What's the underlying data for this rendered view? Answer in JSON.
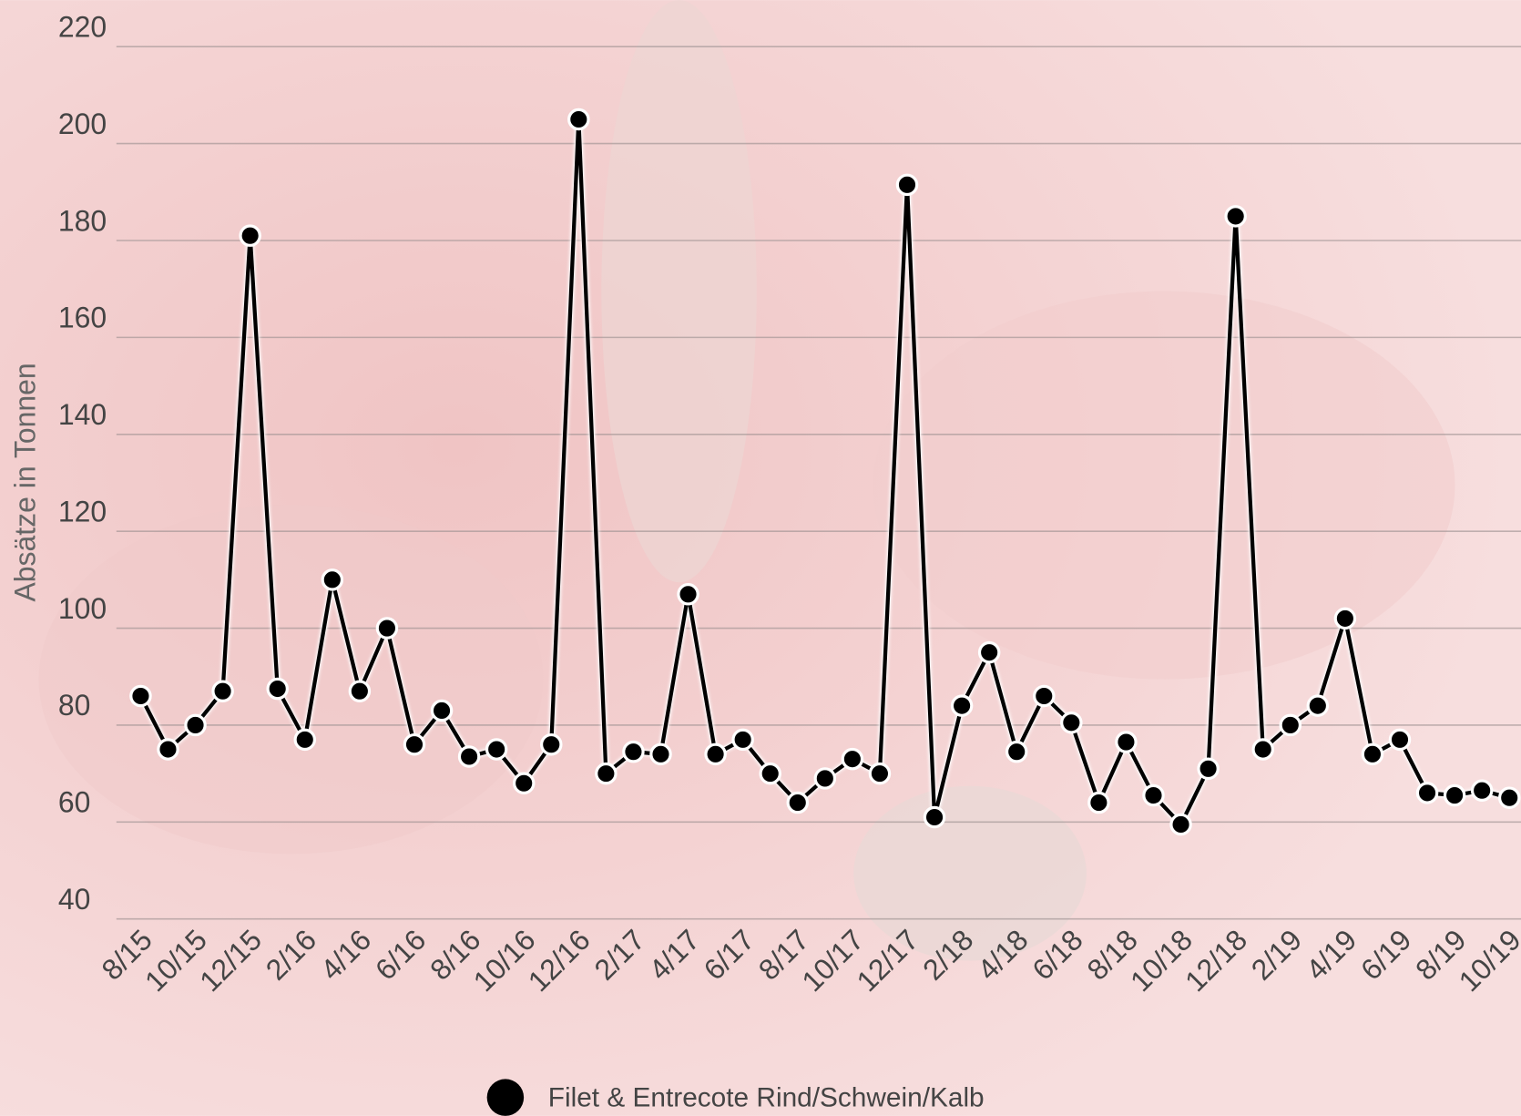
{
  "chart_data": {
    "type": "line",
    "y_label": "Absätze in Tonnen",
    "categories": [
      "8/15",
      null,
      "10/15",
      null,
      "12/15",
      null,
      "2/16",
      null,
      "4/16",
      null,
      "6/16",
      null,
      "8/16",
      null,
      "10/16",
      null,
      "12/16",
      null,
      "2/17",
      null,
      "4/17",
      null,
      "6/17",
      null,
      "8/17",
      null,
      "10/17",
      null,
      "12/17",
      null,
      "2/18",
      null,
      "4/18",
      null,
      "6/18",
      null,
      "8/18",
      null,
      "10/18",
      null,
      "12/18",
      null,
      "2/19",
      null,
      "4/19",
      null,
      "6/19",
      null,
      "8/19",
      null,
      "10/19"
    ],
    "series": [
      {
        "name": "Filet & Entrecote Rind/Schwein/Kalb",
        "color": "#000000",
        "values": [
          86,
          75,
          80,
          87,
          181,
          87.5,
          77,
          110,
          87,
          100,
          76,
          83,
          73.5,
          75,
          68,
          76,
          205,
          70,
          74.5,
          74,
          107,
          74,
          77,
          70,
          64,
          69,
          73,
          70,
          191.5,
          61,
          84,
          95,
          74.5,
          86,
          80.5,
          64,
          76.5,
          65.5,
          59.5,
          71,
          185,
          75,
          80,
          84,
          102,
          74,
          77,
          66,
          65.5,
          66.5,
          65
        ]
      }
    ],
    "ylim": [
      40,
      220
    ],
    "yticks": [
      40,
      60,
      80,
      100,
      120,
      140,
      160,
      180,
      200,
      220
    ],
    "grid": true
  }
}
